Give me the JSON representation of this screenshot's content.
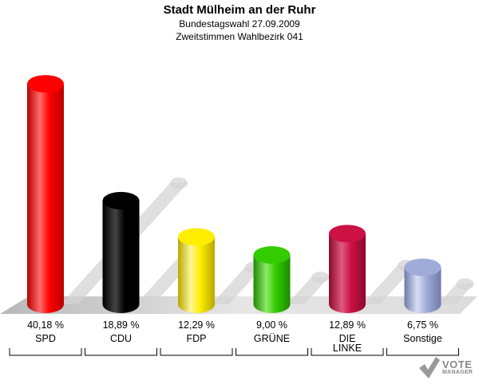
{
  "header": {
    "title": "Stadt Mülheim an der Ruhr",
    "subtitle1": "Bundestagswahl 27.09.2009",
    "subtitle2": "Zweitstimmen Wahlbezirk 041"
  },
  "logo": {
    "line1": "VOTE",
    "line2": "MANAGER"
  },
  "chart_data": {
    "type": "bar",
    "title": "Stadt Mülheim an der Ruhr",
    "subtitle": "Bundestagswahl 27.09.2009 / Zweitstimmen Wahlbezirk 041",
    "xlabel": "",
    "ylabel": "",
    "ylim": [
      0,
      45
    ],
    "grid": false,
    "legend": "none",
    "categories": [
      "SPD",
      "CDU",
      "FDP",
      "GRÜNE",
      "DIE LINKE",
      "Sonstige"
    ],
    "category_lines": [
      [
        "SPD"
      ],
      [
        "CDU"
      ],
      [
        "FDP"
      ],
      [
        "GRÜNE"
      ],
      [
        "DIE",
        "LINKE"
      ],
      [
        "Sonstige"
      ]
    ],
    "values": [
      40.18,
      18.89,
      12.29,
      9.0,
      12.89,
      6.75
    ],
    "value_labels": [
      "40,18 %",
      "18,89 %",
      "12,29 %",
      "9,00 %",
      "12,89 %",
      "6,75 %"
    ],
    "colors": [
      "#ff0000",
      "#000000",
      "#ffee00",
      "#33cc00",
      "#cc1144",
      "#a0acd8"
    ],
    "dark_colors": [
      "#b80000",
      "#000000",
      "#b8a800",
      "#1e8a00",
      "#8a0a2c",
      "#6f7aa8"
    ],
    "light_colors": [
      "#ff6b6b",
      "#444444",
      "#fff79a",
      "#8ee86a",
      "#e05a80",
      "#d8def4"
    ]
  }
}
